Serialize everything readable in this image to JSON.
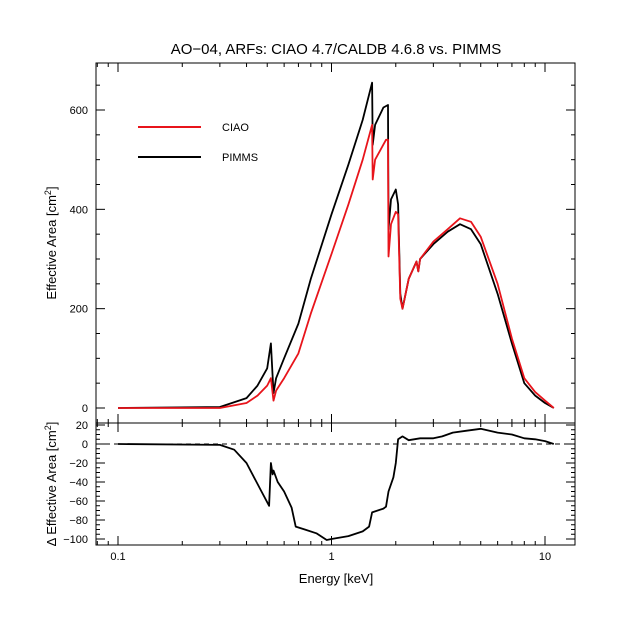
{
  "chart_data": [
    {
      "type": "line",
      "panel": "top",
      "title": "AO−04, ARFs: CIAO 4.7/CALDB 4.6.8 vs. PIMMS",
      "xlabel": "Energy [keV]",
      "ylabel": "Effective Area [cm²]",
      "ylabel_text": "Effective Area [cm",
      "ylabel_sup": "2",
      "ylabel_close": "]",
      "xscale": "log",
      "xlim": [
        0.08,
        13
      ],
      "ylim": [
        -30,
        690
      ],
      "xticks": [
        0.1,
        1,
        10
      ],
      "xtick_labels": [
        "0.1",
        "1",
        "10"
      ],
      "yticks": [
        0,
        200,
        400,
        600
      ],
      "ytick_labels": [
        "0",
        "200",
        "400",
        "600"
      ],
      "grid": false,
      "legend": {
        "position": "top-left",
        "entries": [
          "CIAO",
          "PIMMS"
        ]
      },
      "series": [
        {
          "name": "CIAO",
          "color": "#e8141b",
          "x": [
            0.1,
            0.3,
            0.4,
            0.45,
            0.5,
            0.52,
            0.535,
            0.55,
            0.6,
            0.7,
            0.8,
            1.0,
            1.2,
            1.4,
            1.55,
            1.56,
            1.6,
            1.8,
            1.84,
            1.85,
            1.9,
            2.0,
            2.05,
            2.1,
            2.15,
            2.3,
            2.5,
            2.55,
            2.6,
            3.0,
            3.5,
            4.0,
            4.5,
            5.0,
            6.0,
            7.0,
            8.0,
            9.0,
            10.0,
            11.0
          ],
          "values": [
            0,
            0,
            10,
            25,
            45,
            60,
            15,
            35,
            60,
            110,
            190,
            310,
            410,
            500,
            570,
            460,
            500,
            540,
            540,
            305,
            370,
            395,
            390,
            220,
            200,
            260,
            295,
            275,
            300,
            335,
            360,
            382,
            375,
            345,
            250,
            140,
            60,
            32,
            15,
            0
          ]
        },
        {
          "name": "PIMMS",
          "color": "#000000",
          "x": [
            0.1,
            0.3,
            0.4,
            0.45,
            0.5,
            0.52,
            0.535,
            0.55,
            0.6,
            0.7,
            0.8,
            1.0,
            1.2,
            1.4,
            1.55,
            1.56,
            1.6,
            1.75,
            1.84,
            1.85,
            1.9,
            2.0,
            2.05,
            2.1,
            2.15,
            2.3,
            2.5,
            2.55,
            2.6,
            3.0,
            3.5,
            4.0,
            4.5,
            5.0,
            6.0,
            7.0,
            8.0,
            9.0,
            10.0,
            11.0
          ],
          "values": [
            0,
            2,
            20,
            45,
            80,
            130,
            30,
            60,
            100,
            170,
            260,
            390,
            490,
            580,
            655,
            530,
            570,
            605,
            610,
            360,
            420,
            440,
            410,
            230,
            200,
            260,
            295,
            275,
            300,
            330,
            355,
            370,
            360,
            330,
            230,
            130,
            50,
            25,
            10,
            0
          ]
        }
      ]
    },
    {
      "type": "line",
      "panel": "bottom",
      "xlabel": "Energy [keV]",
      "ylabel": "Δ Effective Area [cm²]",
      "ylabel_text": "Δ Effective Area [cm",
      "ylabel_sup": "2",
      "ylabel_close": "]",
      "xscale": "log",
      "xlim": [
        0.08,
        13
      ],
      "ylim": [
        -105,
        22
      ],
      "xticks": [
        0.1,
        1,
        10
      ],
      "xtick_labels": [
        "0.1",
        "1",
        "10"
      ],
      "yticks": [
        20,
        0,
        -20,
        -40,
        -60,
        -80,
        -100
      ],
      "ytick_labels": [
        "20",
        "0",
        "−20",
        "−40",
        "−60",
        "−80",
        "−100"
      ],
      "grid": false,
      "reference_line": 0,
      "series": [
        {
          "name": "difference",
          "color": "#000000",
          "x": [
            0.1,
            0.3,
            0.35,
            0.4,
            0.47,
            0.51,
            0.52,
            0.53,
            0.535,
            0.56,
            0.6,
            0.65,
            0.68,
            0.75,
            0.85,
            0.95,
            1.0,
            1.2,
            1.4,
            1.5,
            1.55,
            1.75,
            1.8,
            1.85,
            1.95,
            2.0,
            2.05,
            2.15,
            2.3,
            2.6,
            3.0,
            3.3,
            3.7,
            4.3,
            5.0,
            6.0,
            7.0,
            8.0,
            9.0,
            10.0,
            11.0
          ],
          "values": [
            0,
            -1,
            -6,
            -20,
            -50,
            -65,
            -20,
            -32,
            -28,
            -40,
            -50,
            -67,
            -87,
            -90,
            -94,
            -101,
            -100,
            -97,
            -92,
            -87,
            -72,
            -68,
            -66,
            -50,
            -35,
            -20,
            5,
            8,
            4,
            6,
            6,
            8,
            12,
            14,
            16,
            12,
            10,
            6,
            5,
            3,
            0
          ]
        }
      ]
    }
  ]
}
